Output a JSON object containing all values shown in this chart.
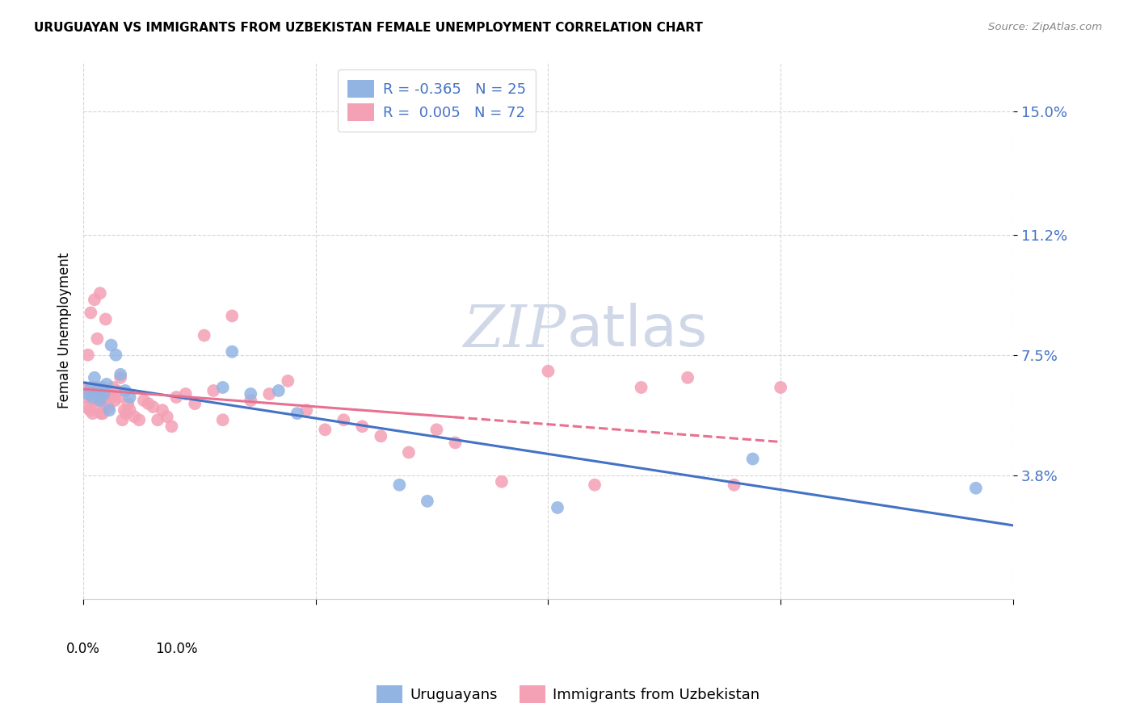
{
  "title": "URUGUAYAN VS IMMIGRANTS FROM UZBEKISTAN FEMALE UNEMPLOYMENT CORRELATION CHART",
  "source": "Source: ZipAtlas.com",
  "ylabel": "Female Unemployment",
  "legend_label1": "Uruguayans",
  "legend_label2": "Immigrants from Uzbekistan",
  "r1": "-0.365",
  "n1": "25",
  "r2": "0.005",
  "n2": "72",
  "ytick_labels": [
    "3.8%",
    "7.5%",
    "11.2%",
    "15.0%"
  ],
  "ytick_values": [
    3.8,
    7.5,
    11.2,
    15.0
  ],
  "xlim": [
    0.0,
    10.0
  ],
  "ylim": [
    0.0,
    16.5
  ],
  "color_uruguayan": "#92b4e3",
  "color_uzbekistan": "#f4a0b5",
  "color_line_uruguayan": "#4472c4",
  "color_line_uzbekistan": "#e87090",
  "background_color": "#ffffff",
  "watermark_color": "#d0d8e8",
  "uruguayan_x": [
    0.05,
    0.08,
    0.1,
    0.12,
    0.15,
    0.18,
    0.2,
    0.22,
    0.25,
    0.28,
    0.3,
    0.35,
    0.4,
    0.45,
    0.5,
    1.5,
    1.6,
    1.8,
    2.1,
    2.3,
    3.4,
    3.7,
    5.1,
    7.2,
    9.6
  ],
  "uruguayan_y": [
    6.3,
    6.5,
    6.2,
    6.8,
    6.4,
    6.1,
    6.5,
    6.3,
    6.6,
    5.8,
    7.8,
    7.5,
    6.9,
    6.4,
    6.2,
    6.5,
    7.6,
    6.3,
    6.4,
    5.7,
    3.5,
    3.0,
    2.8,
    4.3,
    3.4
  ],
  "uzbekistan_x": [
    0.02,
    0.03,
    0.04,
    0.05,
    0.06,
    0.07,
    0.08,
    0.09,
    0.1,
    0.11,
    0.12,
    0.13,
    0.14,
    0.15,
    0.16,
    0.17,
    0.18,
    0.19,
    0.2,
    0.21,
    0.22,
    0.23,
    0.24,
    0.25,
    0.26,
    0.27,
    0.28,
    0.3,
    0.32,
    0.34,
    0.36,
    0.38,
    0.4,
    0.42,
    0.44,
    0.46,
    0.48,
    0.5,
    0.55,
    0.6,
    0.65,
    0.7,
    0.75,
    0.8,
    0.85,
    0.9,
    0.95,
    1.0,
    1.1,
    1.2,
    1.3,
    1.4,
    1.5,
    1.6,
    1.8,
    2.0,
    2.2,
    2.4,
    2.6,
    2.8,
    3.0,
    3.2,
    3.5,
    3.8,
    4.0,
    4.5,
    5.0,
    5.5,
    6.0,
    6.5,
    7.0,
    7.5
  ],
  "uzbekistan_y": [
    6.5,
    6.2,
    5.9,
    7.5,
    6.3,
    5.8,
    8.8,
    6.4,
    5.7,
    6.1,
    9.2,
    6.3,
    6.5,
    8.0,
    5.9,
    6.2,
    9.4,
    5.7,
    6.2,
    5.7,
    6.3,
    6.1,
    8.6,
    6.0,
    6.4,
    5.9,
    6.3,
    6.2,
    6.5,
    6.1,
    6.4,
    6.2,
    6.8,
    5.5,
    5.8,
    5.7,
    6.0,
    5.8,
    5.6,
    5.5,
    6.1,
    6.0,
    5.9,
    5.5,
    5.8,
    5.6,
    5.3,
    6.2,
    6.3,
    6.0,
    8.1,
    6.4,
    5.5,
    8.7,
    6.1,
    6.3,
    6.7,
    5.8,
    5.2,
    5.5,
    5.3,
    5.0,
    4.5,
    5.2,
    4.8,
    3.6,
    7.0,
    3.5,
    6.5,
    6.8,
    3.5,
    6.5
  ],
  "uzb_solid_end_x": 4.0,
  "uzb_dashed_start_x": 4.0,
  "uzb_line_end_x": 7.5
}
